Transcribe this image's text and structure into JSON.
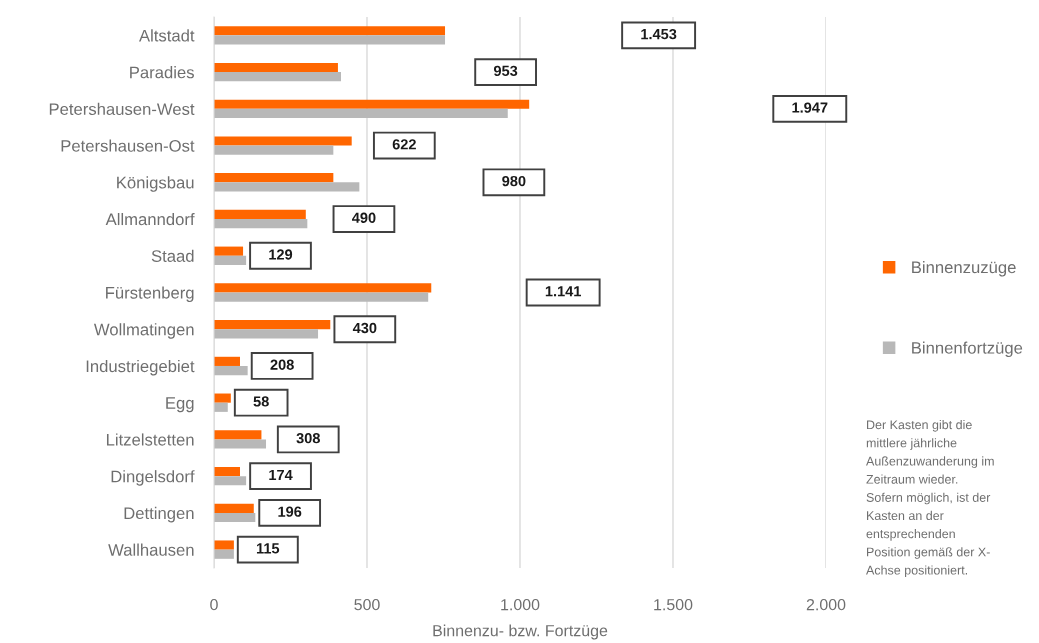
{
  "chart_data": {
    "type": "bar",
    "orientation": "horizontal",
    "categories": [
      "Altstadt",
      "Paradies",
      "Petershausen-West",
      "Petershausen-Ost",
      "Königsbau",
      "Allmanndorf",
      "Staad",
      "Fürstenberg",
      "Wollmatingen",
      "Industriegebiet",
      "Egg",
      "Litzelstetten",
      "Dingelsdorf",
      "Dettingen",
      "Wallhausen"
    ],
    "series": [
      {
        "name": "Binnenzuzüge",
        "color": "#ff6600",
        "values": [
          755,
          405,
          1030,
          450,
          390,
          300,
          95,
          710,
          380,
          85,
          55,
          155,
          85,
          130,
          65
        ]
      },
      {
        "name": "Binnenfortzüge",
        "color": "#b8b8b8",
        "values": [
          755,
          415,
          960,
          390,
          475,
          305,
          105,
          700,
          340,
          110,
          45,
          170,
          105,
          135,
          65
        ]
      }
    ],
    "xlim": [
      0,
      2000
    ],
    "xticks": [
      0,
      500,
      {
        "value": 1000,
        "label": "1.000"
      },
      {
        "value": 1500,
        "label": "1.500"
      },
      {
        "value": 2000,
        "label": "2.000"
      }
    ],
    "xlabel": "Binnenzu- bzw. Fortzüge",
    "grid": "x",
    "legend": "right",
    "annotations": [
      "1.453",
      "953",
      "1.947",
      "622",
      "980",
      "490",
      "129",
      "1.141",
      "430",
      "208",
      "58",
      "308",
      "174",
      "196",
      "115",
      "Der Kasten gibt die\nmittlere jährliche\nAußenzuwanderung im\nZeitraum wieder.\nSofern möglich, ist der\nKasten an der\nentsprechenden\nPosition gemäß der X-\nAchse positioniert."
    ]
  }
}
